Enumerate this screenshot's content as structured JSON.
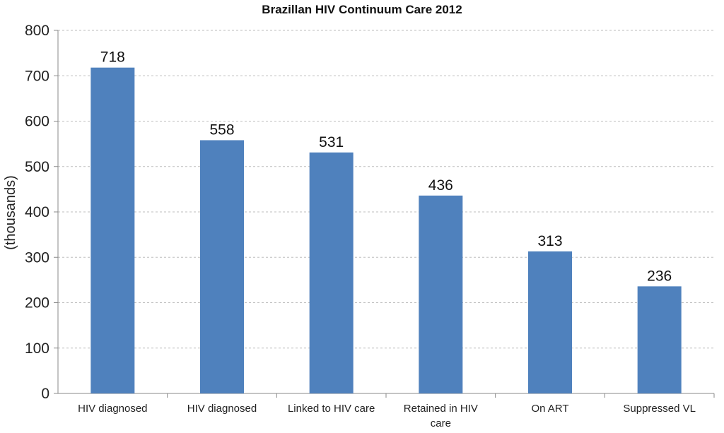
{
  "chart_data": {
    "type": "bar",
    "title": "Brazillan HIV Continuum Care 2012",
    "ylabel": "(thousands)",
    "xlabel": "",
    "categories": [
      [
        "HIV diagnosed"
      ],
      [
        "HIV diagnosed"
      ],
      [
        "Linked to HIV care"
      ],
      [
        "Retained in HIV",
        "care"
      ],
      [
        "On ART"
      ],
      [
        "Suppressed VL"
      ]
    ],
    "values": [
      718,
      558,
      531,
      436,
      313,
      236
    ],
    "ylim": [
      0,
      800
    ],
    "yticks": [
      0,
      100,
      200,
      300,
      400,
      500,
      600,
      700,
      800
    ],
    "grid": true,
    "bar_color": "#4f81bd",
    "grid_color": "#bdbdbd"
  }
}
